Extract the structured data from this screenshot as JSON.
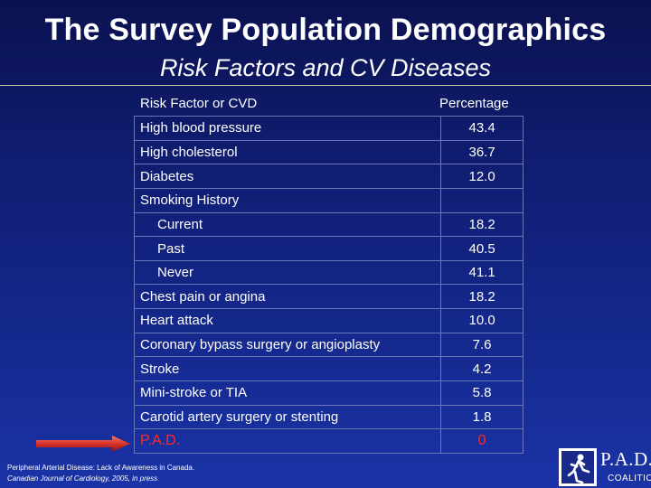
{
  "header": {
    "title": "The Survey Population Demographics",
    "subtitle": "Risk Factors and CV Diseases"
  },
  "table": {
    "col_risk_factor": "Risk Factor or CVD",
    "col_percentage": "Percentage",
    "rows": [
      {
        "label": "High blood pressure",
        "value": "43.4"
      },
      {
        "label": "High cholesterol",
        "value": "36.7"
      },
      {
        "label": "Diabetes",
        "value": "12.0"
      },
      {
        "label": "Smoking History",
        "value": ""
      },
      {
        "label": "Current",
        "value": "18.2"
      },
      {
        "label": "Past",
        "value": "40.5"
      },
      {
        "label": "Never",
        "value": "41.1"
      },
      {
        "label": "Chest pain or angina",
        "value": "18.2"
      },
      {
        "label": "Heart attack",
        "value": "10.0"
      },
      {
        "label": "Coronary bypass surgery or angioplasty",
        "value": "7.6"
      },
      {
        "label": "Stroke",
        "value": "4.2"
      },
      {
        "label": "Mini-stroke or TIA",
        "value": "5.8"
      },
      {
        "label": "Carotid artery surgery or stenting",
        "value": "1.8"
      },
      {
        "label": "P.A.D.",
        "value": "0"
      }
    ]
  },
  "source": {
    "line1": "Peripheral Arterial Disease:  Lack of Awareness in Canada.",
    "line2": "Canadian Journal of Cardiology, 2005, in press"
  },
  "logo": {
    "name": "P.A.D.",
    "tagline": "COALITION"
  },
  "colors": {
    "highlight": "#ff2a1f",
    "arrow": "#d8322a"
  }
}
